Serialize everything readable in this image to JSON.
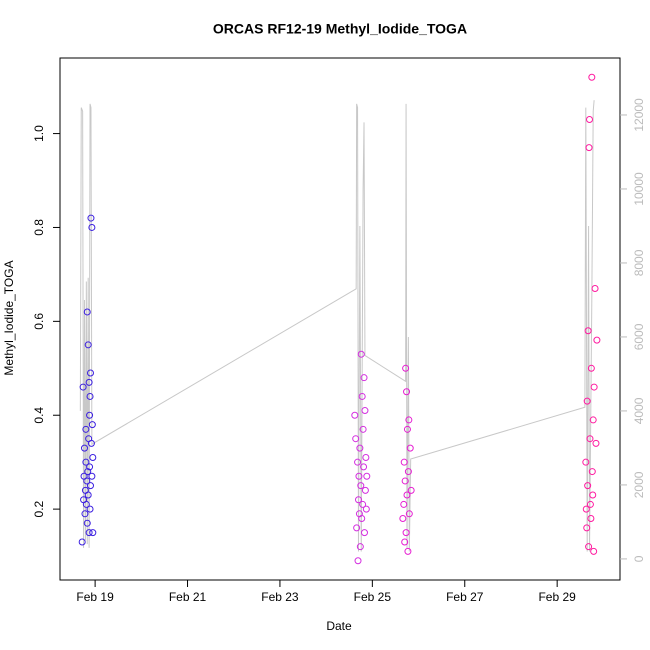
{
  "chart_data": {
    "type": "scatter",
    "title": "ORCAS RF12-19 Methyl_Iodide_TOGA",
    "x_label": "Date",
    "y_label": "Methyl_Iodide_TOGA",
    "xlim": [
      18.24,
      30.36
    ],
    "xticks": [
      {
        "value": 19,
        "label": "Feb 19"
      },
      {
        "value": 21,
        "label": "Feb 21"
      },
      {
        "value": 23,
        "label": "Feb 23"
      },
      {
        "value": 25,
        "label": "Feb 25"
      },
      {
        "value": 27,
        "label": "Feb 27"
      },
      {
        "value": 29,
        "label": "Feb 29"
      }
    ],
    "ylim": [
      0.049,
      1.161
    ],
    "yticks": [
      0.2,
      0.4,
      0.6,
      0.8,
      {
        "value": 1,
        "label": "1.0"
      }
    ],
    "y2lim": [
      -570,
      13540
    ],
    "y2ticks": [
      0,
      2000,
      4000,
      6000,
      8000,
      10000,
      12000
    ],
    "y2_color": "#bbbbbb",
    "series": [
      {
        "color": "#3b1fe0",
        "x": [
          18.72,
          18.74,
          18.75,
          18.76,
          18.77,
          18.78,
          18.79,
          18.8,
          18.8,
          18.81,
          18.82,
          18.83,
          18.83,
          18.84,
          18.85,
          18.85,
          18.86,
          18.87,
          18.87,
          18.88,
          18.88,
          18.89,
          18.89,
          18.9,
          18.9,
          18.91,
          18.92,
          18.93,
          18.93,
          18.94,
          18.95,
          18.95
        ],
        "values": [
          0.13,
          0.46,
          0.22,
          0.27,
          0.33,
          0.19,
          0.24,
          0.3,
          0.37,
          0.21,
          0.26,
          0.17,
          0.62,
          0.28,
          0.55,
          0.23,
          0.35,
          0.47,
          0.15,
          0.4,
          0.29,
          0.44,
          0.2,
          0.49,
          0.25,
          0.82,
          0.34,
          0.8,
          0.27,
          0.38,
          0.15,
          0.31
        ]
      },
      {
        "color": "#d42ee0",
        "x": [
          24.62,
          24.64,
          24.66,
          24.68,
          24.69,
          24.7,
          24.71,
          24.72,
          24.73,
          24.74,
          24.75,
          24.76,
          24.77,
          24.78,
          24.79,
          24.8,
          24.81,
          24.82,
          24.83,
          24.84,
          24.85,
          24.86,
          24.87,
          24.88
        ],
        "values": [
          0.4,
          0.35,
          0.16,
          0.3,
          0.09,
          0.22,
          0.27,
          0.19,
          0.33,
          0.12,
          0.25,
          0.53,
          0.18,
          0.44,
          0.21,
          0.37,
          0.29,
          0.48,
          0.15,
          0.41,
          0.24,
          0.31,
          0.2,
          0.27
        ]
      },
      {
        "color": "#e61ed2",
        "x": [
          25.66,
          25.68,
          25.69,
          25.7,
          25.71,
          25.72,
          25.73,
          25.74,
          25.75,
          25.76,
          25.77,
          25.78,
          25.79,
          25.8,
          25.82,
          25.84
        ],
        "values": [
          0.18,
          0.21,
          0.3,
          0.13,
          0.26,
          0.5,
          0.15,
          0.45,
          0.23,
          0.37,
          0.11,
          0.28,
          0.39,
          0.19,
          0.33,
          0.24
        ]
      },
      {
        "color": "#ff1aa0",
        "x": [
          29.62,
          29.63,
          29.64,
          29.65,
          29.66,
          29.67,
          29.68,
          29.69,
          29.7,
          29.71,
          29.72,
          29.73,
          29.74,
          29.75,
          29.76,
          29.77,
          29.78,
          29.79,
          29.8,
          29.82,
          29.84,
          29.86
        ],
        "values": [
          0.3,
          0.2,
          0.16,
          0.43,
          0.25,
          0.58,
          0.12,
          0.97,
          1.03,
          0.35,
          0.21,
          0.18,
          0.5,
          1.12,
          0.28,
          0.23,
          0.39,
          0.11,
          0.46,
          0.67,
          0.34,
          0.56
        ]
      },
      {
        "type": "line",
        "axis": "y2",
        "color": "#c8c8c8",
        "x": [
          18.68,
          18.7,
          18.73,
          18.75,
          18.77,
          18.79,
          18.81,
          18.83,
          18.85,
          18.87,
          18.89,
          18.91,
          18.93,
          24.65,
          24.66,
          24.68,
          24.7,
          24.73,
          24.76,
          24.8,
          24.82,
          24.84,
          25.72,
          25.73,
          25.75,
          25.78,
          25.8,
          25.83,
          29.6,
          29.62,
          29.65,
          29.68,
          29.7,
          29.75,
          29.78,
          29.8
        ],
        "values": [
          4000,
          12200,
          12100,
          300,
          7000,
          500,
          7500,
          400,
          7600,
          300,
          12300,
          12200,
          3100,
          7300,
          12300,
          12200,
          200,
          9000,
          200,
          10000,
          11800,
          5500,
          4800,
          12300,
          300,
          6000,
          200,
          2700,
          4100,
          12200,
          200,
          9000,
          200,
          7000,
          12100,
          12400
        ]
      }
    ]
  }
}
